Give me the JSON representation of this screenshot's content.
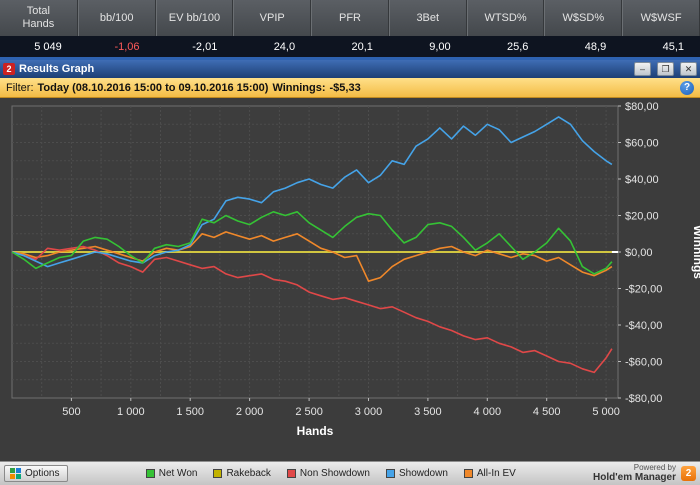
{
  "stats": {
    "columns": [
      {
        "label": "Total Hands",
        "value": "5 049",
        "color": "#ffffff"
      },
      {
        "label": "bb/100",
        "value": "-1,06",
        "color": "#ff5a5a"
      },
      {
        "label": "EV bb/100",
        "value": "-2,01",
        "color": "#ffffff"
      },
      {
        "label": "VPIP",
        "value": "24,0",
        "color": "#ffffff"
      },
      {
        "label": "PFR",
        "value": "20,1",
        "color": "#ffffff"
      },
      {
        "label": "3Bet",
        "value": "9,00",
        "color": "#ffffff"
      },
      {
        "label": "WTSD%",
        "value": "25,6",
        "color": "#ffffff"
      },
      {
        "label": "W$SD%",
        "value": "48,9",
        "color": "#ffffff"
      },
      {
        "label": "W$WSF",
        "value": "45,1",
        "color": "#ffffff"
      }
    ]
  },
  "window": {
    "icon_text": "2",
    "title": "Results Graph",
    "minimize_glyph": "–",
    "maximize_glyph": "❐",
    "close_glyph": "✕"
  },
  "filter": {
    "prefix": "Filter:",
    "range_text": "Today (08.10.2016 15:00 to 09.10.2016 15:00)",
    "winnings_label": "Winnings:",
    "winnings_value": "-$5,33",
    "help_glyph": "?"
  },
  "chart_data": {
    "type": "line",
    "title": "Results Graph",
    "xlabel": "Hands",
    "ylabel": "Winnings",
    "xlim": [
      0,
      5100
    ],
    "ylim": [
      -80,
      80
    ],
    "grid": true,
    "grid_x_step": 250,
    "grid_y_step": 10,
    "legend_position": "bottom",
    "plot_bg": "#3d3d3d",
    "border_color": "#707070",
    "grid_color": "#4d4d4d",
    "zero_line_color": "#ffffff",
    "x_ticks": [
      {
        "v": 500,
        "label": "500"
      },
      {
        "v": 1000,
        "label": "1 000"
      },
      {
        "v": 1500,
        "label": "1 500"
      },
      {
        "v": 2000,
        "label": "2 000"
      },
      {
        "v": 2500,
        "label": "2 500"
      },
      {
        "v": 3000,
        "label": "3 000"
      },
      {
        "v": 3500,
        "label": "3 500"
      },
      {
        "v": 4000,
        "label": "4 000"
      },
      {
        "v": 4500,
        "label": "4 500"
      },
      {
        "v": 5000,
        "label": "5 000"
      }
    ],
    "y_ticks": [
      {
        "v": 80,
        "label": "$80,00"
      },
      {
        "v": 60,
        "label": "$60,00"
      },
      {
        "v": 40,
        "label": "$40,00"
      },
      {
        "v": 20,
        "label": "$20,00"
      },
      {
        "v": 0,
        "label": "$0,00"
      },
      {
        "v": -20,
        "label": "-$20,00"
      },
      {
        "v": -40,
        "label": "-$40,00"
      },
      {
        "v": -60,
        "label": "-$60,00"
      },
      {
        "v": -80,
        "label": "-$80,00"
      }
    ],
    "x": [
      0,
      100,
      200,
      300,
      400,
      500,
      600,
      700,
      800,
      900,
      1000,
      1100,
      1200,
      1300,
      1400,
      1500,
      1600,
      1700,
      1800,
      1900,
      2000,
      2100,
      2200,
      2300,
      2400,
      2500,
      2600,
      2700,
      2800,
      2900,
      3000,
      3100,
      3200,
      3300,
      3400,
      3500,
      3600,
      3700,
      3800,
      3900,
      4000,
      4100,
      4200,
      4300,
      4400,
      4500,
      4600,
      4700,
      4800,
      4900,
      5000,
      5049
    ],
    "series": [
      {
        "name": "Rakeback",
        "color": "#c2b300",
        "values": [
          0,
          0,
          0,
          0,
          0,
          0,
          0,
          0,
          0,
          0,
          0,
          0,
          0,
          0,
          0,
          0,
          0,
          0,
          0,
          0,
          0,
          0,
          0,
          0,
          0,
          0,
          0,
          0,
          0,
          0,
          0,
          0,
          0,
          0,
          0,
          0,
          0,
          0,
          0,
          0,
          0,
          0,
          0,
          0,
          0,
          0,
          0,
          0,
          0,
          0,
          0,
          0
        ]
      },
      {
        "name": "All-In EV",
        "color": "#f0882a",
        "values": [
          0,
          -1,
          -3,
          -2,
          0,
          1,
          2,
          3,
          1,
          -1,
          -3,
          -5,
          0,
          2,
          1,
          3,
          10,
          8,
          11,
          9,
          7,
          9,
          6,
          8,
          10,
          6,
          2,
          0,
          -3,
          -2,
          -16,
          -14,
          -8,
          -4,
          -2,
          0,
          2,
          3,
          0,
          -2,
          1,
          -1,
          -3,
          -1,
          -2,
          -5,
          -3,
          -7,
          -11,
          -13,
          -10,
          -8
        ]
      },
      {
        "name": "Non Showdown",
        "color": "#e04848",
        "values": [
          0,
          -2,
          -4,
          2,
          1,
          2,
          3,
          1,
          -2,
          -6,
          -8,
          -11,
          -4,
          -3,
          -5,
          -7,
          -9,
          -8,
          -12,
          -14,
          -13,
          -12,
          -15,
          -16,
          -18,
          -22,
          -24,
          -26,
          -25,
          -27,
          -29,
          -31,
          -30,
          -33,
          -36,
          -38,
          -41,
          -43,
          -46,
          -48,
          -47,
          -50,
          -52,
          -55,
          -54,
          -57,
          -60,
          -61,
          -64,
          -66,
          -58,
          -53
        ]
      },
      {
        "name": "Showdown",
        "color": "#45a3e8",
        "values": [
          0,
          -2,
          -5,
          -8,
          -6,
          -4,
          -2,
          0,
          -1,
          -3,
          -5,
          -6,
          -2,
          0,
          1,
          4,
          15,
          18,
          28,
          30,
          29,
          27,
          33,
          35,
          38,
          40,
          37,
          35,
          41,
          45,
          38,
          42,
          50,
          48,
          58,
          62,
          68,
          62,
          69,
          64,
          70,
          67,
          60,
          63,
          66,
          70,
          74,
          70,
          61,
          55,
          50,
          48
        ]
      },
      {
        "name": "Net Won",
        "color": "#35c235",
        "values": [
          0,
          -4,
          -9,
          -6,
          -3,
          -2,
          6,
          8,
          7,
          3,
          -2,
          -6,
          2,
          4,
          3,
          5,
          18,
          16,
          20,
          17,
          15,
          19,
          22,
          20,
          22,
          16,
          12,
          8,
          14,
          19,
          21,
          20,
          12,
          5,
          8,
          15,
          16,
          14,
          8,
          1,
          5,
          10,
          3,
          -4,
          0,
          5,
          13,
          6,
          -8,
          -12,
          -9,
          -5.33
        ]
      }
    ]
  },
  "footer": {
    "options_label": "Options",
    "legend": [
      {
        "name": "Net Won",
        "color": "#35c235"
      },
      {
        "name": "Rakeback",
        "color": "#c2b300"
      },
      {
        "name": "Non Showdown",
        "color": "#e04848"
      },
      {
        "name": "Showdown",
        "color": "#45a3e8"
      },
      {
        "name": "All-In EV",
        "color": "#f0882a"
      }
    ],
    "powered_by": "Powered by",
    "brand": "Hold'em Manager",
    "brand_badge": "2"
  }
}
